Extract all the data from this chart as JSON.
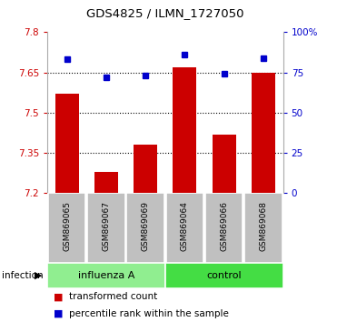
{
  "title": "GDS4825 / ILMN_1727050",
  "samples": [
    "GSM869065",
    "GSM869067",
    "GSM869069",
    "GSM869064",
    "GSM869066",
    "GSM869068"
  ],
  "red_values": [
    7.57,
    7.28,
    7.38,
    7.67,
    7.42,
    7.65
  ],
  "blue_values": [
    83,
    72,
    73,
    86,
    74,
    84
  ],
  "ylim_left": [
    7.2,
    7.8
  ],
  "ylim_right": [
    0,
    100
  ],
  "yticks_left": [
    7.2,
    7.35,
    7.5,
    7.65,
    7.8
  ],
  "yticks_right": [
    0,
    25,
    50,
    75,
    100
  ],
  "ytick_labels_left": [
    "7.2",
    "7.35",
    "7.5",
    "7.65",
    "7.8"
  ],
  "ytick_labels_right": [
    "0",
    "25",
    "50",
    "75",
    "100%"
  ],
  "group_label": "infection",
  "bar_color": "#cc0000",
  "dot_color": "#0000cc",
  "bar_width": 0.6,
  "legend_red": "transformed count",
  "legend_blue": "percentile rank within the sample",
  "influenza_color": "#90ee90",
  "control_color": "#44dd44",
  "xlabel_bg": "#c0c0c0"
}
